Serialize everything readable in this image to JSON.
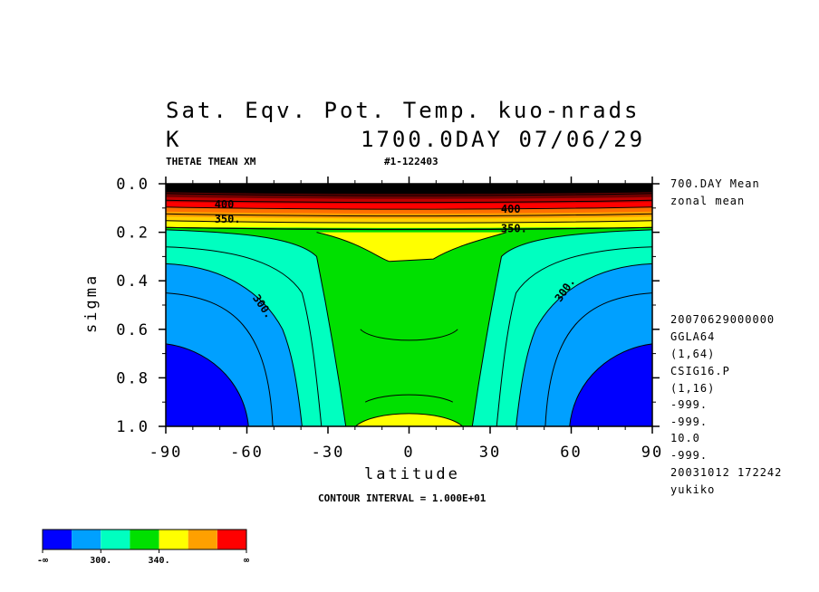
{
  "header": {
    "title_line1": "Sat. Eqv. Pot. Temp. kuo-nrads",
    "title_unit": "K",
    "title_time": "1700.0DAY 07/06/29",
    "var_label": "THETAE TMEAN XM",
    "run_label": "#1-122403"
  },
  "side_info": [
    "700.DAY Mean",
    "zonal mean",
    "20070629000000",
    "GGLA64",
    "(1,64)",
    "CSIG16.P",
    "(1,16)",
    "-999.",
    "-999.",
    "10.0",
    "-999.",
    "20031012 172242",
    "yukiko"
  ],
  "footer": {
    "contour_interval": "CONTOUR INTERVAL = 1.000E+01"
  },
  "chart_data": {
    "type": "heatmap",
    "title": "Sat. Eqv. Pot. Temp. kuo-nrads",
    "xlabel": "latitude",
    "ylabel": "sigma",
    "xlim": [
      -90,
      90
    ],
    "ylim": [
      1.0,
      0.0
    ],
    "x_ticks": [
      "-90",
      "-60",
      "-30",
      "0",
      "30",
      "60",
      "90"
    ],
    "y_ticks": [
      "0.0",
      "0.2",
      "0.4",
      "0.6",
      "0.8",
      "1.0"
    ],
    "contour_labels": [
      {
        "text": "350.",
        "x": -72,
        "y": 0.16
      },
      {
        "text": "350.",
        "x": 34,
        "y": 0.2
      },
      {
        "text": "300.",
        "x": -58,
        "y": 0.47
      },
      {
        "text": "300.",
        "x": 56,
        "y": 0.49
      },
      {
        "text": "400",
        "x": -72,
        "y": 0.1
      },
      {
        "text": "400",
        "x": 34,
        "y": 0.12
      }
    ],
    "colorbar": {
      "colors": [
        "#0000ff",
        "#00a0ff",
        "#00ffc0",
        "#00e000",
        "#ffff00",
        "#ffa000",
        "#ff0000"
      ],
      "labels": [
        "-∞",
        "300.",
        "340.",
        "∞"
      ]
    }
  }
}
